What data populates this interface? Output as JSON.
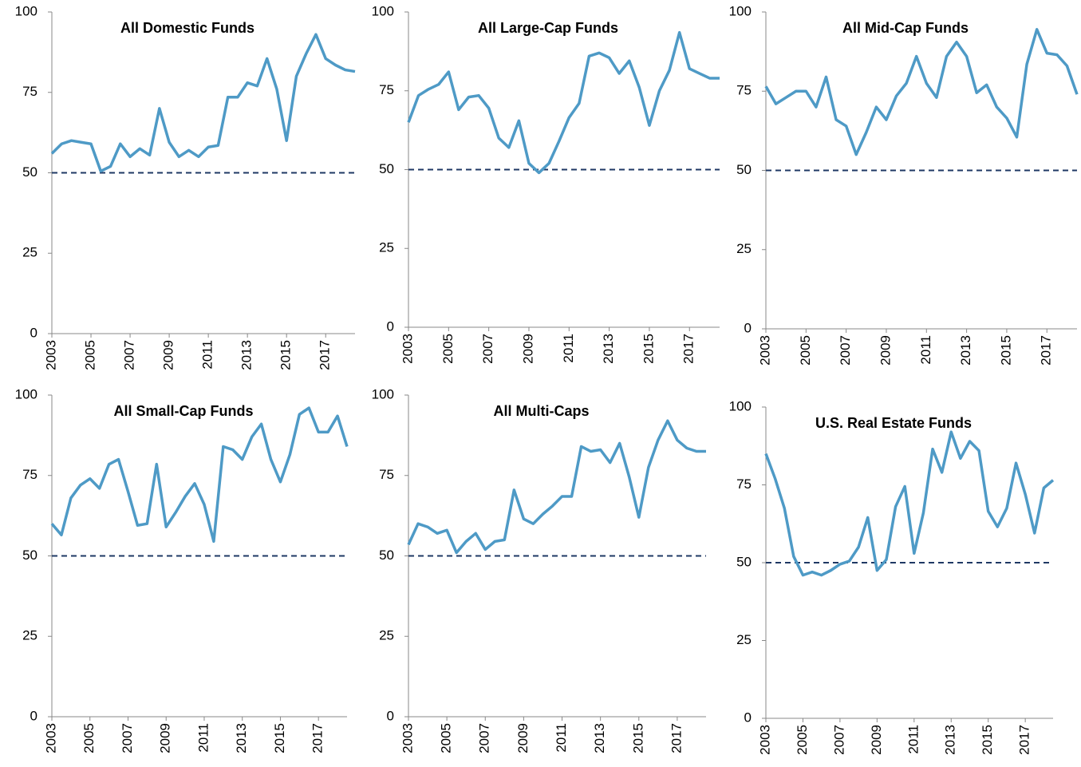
{
  "chart_data": [
    {
      "type": "line",
      "title": "All Domestic Funds",
      "categories": [
        "2003",
        null,
        null,
        null,
        "2005",
        null,
        null,
        null,
        "2007",
        null,
        null,
        null,
        "2009",
        null,
        null,
        null,
        "2011",
        null,
        null,
        null,
        "2013",
        null,
        null,
        null,
        "2015",
        null,
        null,
        null,
        "2017",
        null,
        null,
        null
      ],
      "values": [
        56,
        59,
        60,
        59.5,
        59,
        50.5,
        52,
        59,
        55,
        57.5,
        55.5,
        70,
        59.5,
        55,
        57,
        55,
        58,
        58.5,
        73.5,
        73.5,
        78,
        77,
        85.5,
        76,
        60,
        80,
        87,
        93,
        85.5,
        83.5,
        82,
        81.5
      ],
      "color": "#4e9ac6",
      "ylim": [
        0,
        100
      ],
      "yticks": [
        0,
        25,
        50,
        75,
        100
      ],
      "hline": 50,
      "hline_color": "#1f3864"
    },
    {
      "type": "line",
      "title": "All Large-Cap Funds",
      "categories": [
        "2003",
        null,
        null,
        null,
        "2005",
        null,
        null,
        null,
        "2007",
        null,
        null,
        null,
        "2009",
        null,
        null,
        null,
        "2011",
        null,
        null,
        null,
        "2013",
        null,
        null,
        null,
        "2015",
        null,
        null,
        null,
        "2017",
        null,
        null,
        null
      ],
      "values": [
        65,
        73.5,
        75.5,
        77,
        81,
        69,
        73,
        73.5,
        69.5,
        60,
        57,
        65.5,
        52,
        49,
        52,
        59,
        66.5,
        71,
        86,
        87,
        85.5,
        80.5,
        84.5,
        76,
        64,
        75,
        81.5,
        93.5,
        82,
        80.5,
        79,
        79
      ],
      "color": "#4e9ac6",
      "ylim": [
        0,
        100
      ],
      "yticks": [
        0,
        25,
        50,
        75,
        100
      ],
      "hline": 50,
      "hline_color": "#1f3864"
    },
    {
      "type": "line",
      "title": "All Mid-Cap Funds",
      "categories": [
        "2003",
        null,
        null,
        null,
        "2005",
        null,
        null,
        null,
        "2007",
        null,
        null,
        null,
        "2009",
        null,
        null,
        null,
        "2011",
        null,
        null,
        null,
        "2013",
        null,
        null,
        null,
        "2015",
        null,
        null,
        null,
        "2017",
        null,
        null,
        null
      ],
      "values": [
        76.5,
        71,
        73,
        75,
        75,
        70,
        79.5,
        66,
        64,
        55,
        62,
        70,
        66,
        73.5,
        77.5,
        86,
        77.5,
        73,
        86,
        90.5,
        86,
        74.5,
        77,
        70,
        66.5,
        60.5,
        83.5,
        94.5,
        87,
        86.5,
        83,
        74
      ],
      "color": "#4e9ac6",
      "ylim": [
        0,
        100
      ],
      "yticks": [
        0,
        25,
        50,
        75,
        100
      ],
      "hline": 50,
      "hline_color": "#1f3864"
    },
    {
      "type": "line",
      "title": "All Small-Cap Funds",
      "categories": [
        "2003",
        null,
        null,
        null,
        "2005",
        null,
        null,
        null,
        "2007",
        null,
        null,
        null,
        "2009",
        null,
        null,
        null,
        "2011",
        null,
        null,
        null,
        "2013",
        null,
        null,
        null,
        "2015",
        null,
        null,
        null,
        "2017",
        null,
        null,
        null
      ],
      "values": [
        60,
        56.5,
        68,
        72,
        74,
        71,
        78.5,
        80,
        70,
        59.5,
        60,
        78.5,
        59,
        63.5,
        68.5,
        72.5,
        66,
        54.5,
        84,
        83,
        80,
        87,
        91,
        80,
        73,
        81.5,
        94,
        96,
        88.5,
        88.5,
        93.5,
        84
      ],
      "color": "#4e9ac6",
      "ylim": [
        0,
        100
      ],
      "yticks": [
        0,
        25,
        50,
        75,
        100
      ],
      "hline": 50,
      "hline_color": "#1f3864"
    },
    {
      "type": "line",
      "title": "All Multi-Caps",
      "categories": [
        "2003",
        null,
        null,
        null,
        "2005",
        null,
        null,
        null,
        "2007",
        null,
        null,
        null,
        "2009",
        null,
        null,
        null,
        "2011",
        null,
        null,
        null,
        "2013",
        null,
        null,
        null,
        "2015",
        null,
        null,
        null,
        "2017",
        null,
        null,
        null
      ],
      "values": [
        53.5,
        60,
        59,
        57,
        58,
        51,
        54.5,
        57,
        52,
        54.5,
        55,
        70.5,
        61.5,
        60,
        63,
        65.5,
        68.5,
        68.5,
        84,
        82.5,
        83,
        79,
        85,
        74.5,
        62,
        77.5,
        86,
        92,
        86,
        83.5,
        82.5,
        82.5
      ],
      "color": "#4e9ac6",
      "ylim": [
        0,
        100
      ],
      "yticks": [
        0,
        25,
        50,
        75,
        100
      ],
      "hline": 50,
      "hline_color": "#1f3864"
    },
    {
      "type": "line",
      "title": "U.S. Real Estate Funds",
      "categories": [
        "2003",
        null,
        null,
        null,
        "2005",
        null,
        null,
        null,
        "2007",
        null,
        null,
        null,
        "2009",
        null,
        null,
        null,
        "2011",
        null,
        null,
        null,
        "2013",
        null,
        null,
        null,
        "2015",
        null,
        null,
        null,
        "2017",
        null,
        null,
        null
      ],
      "values": [
        85,
        77,
        67.5,
        52,
        46,
        47,
        46,
        47.5,
        49.5,
        50.5,
        55,
        64.5,
        47.5,
        51,
        68,
        74.5,
        53,
        66,
        86.5,
        79,
        92,
        83.5,
        89,
        86,
        66.5,
        61.5,
        67.5,
        82,
        72,
        59.5,
        74,
        76.5
      ],
      "color": "#4e9ac6",
      "ylim": [
        0,
        100
      ],
      "yticks": [
        0,
        25,
        50,
        75,
        100
      ],
      "hline": 50,
      "hline_color": "#1f3864"
    }
  ]
}
